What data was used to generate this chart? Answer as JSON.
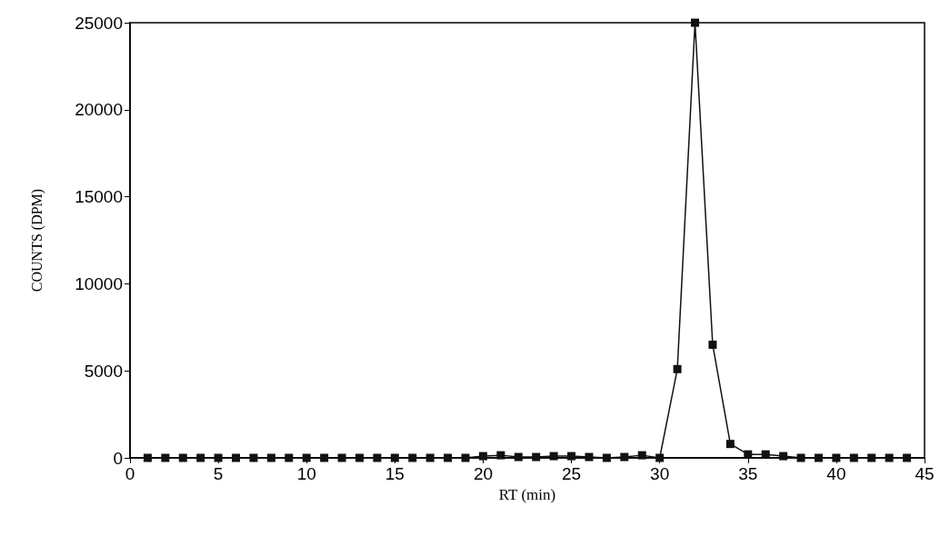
{
  "chart_data": {
    "type": "line",
    "xlabel": "RT (min)",
    "ylabel": "COUNTS (DPM)",
    "x": [
      1,
      2,
      3,
      4,
      5,
      6,
      7,
      8,
      9,
      10,
      11,
      12,
      13,
      14,
      15,
      16,
      17,
      18,
      19,
      20,
      21,
      22,
      23,
      24,
      25,
      26,
      27,
      28,
      29,
      30,
      31,
      32,
      33,
      34,
      35,
      36,
      37,
      38,
      39,
      40,
      41,
      42,
      43,
      44
    ],
    "series": [
      {
        "color": "#111111",
        "values": [
          0,
          0,
          0,
          0,
          0,
          0,
          0,
          0,
          0,
          0,
          0,
          0,
          0,
          0,
          0,
          0,
          0,
          0,
          0,
          100,
          150,
          50,
          50,
          100,
          100,
          50,
          0,
          50,
          150,
          0,
          5100,
          25000,
          6500,
          800,
          200,
          200,
          100,
          0,
          0,
          0,
          0,
          0,
          0,
          0
        ]
      }
    ],
    "xlim": [
      0,
      45
    ],
    "xticks": [
      0,
      5,
      10,
      15,
      20,
      25,
      30,
      35,
      40,
      45
    ],
    "ylim": [
      0,
      25000
    ],
    "yticks": [
      0,
      5000,
      10000,
      15000,
      20000,
      25000
    ],
    "grid": false,
    "marker": "square",
    "line_style": "solid"
  }
}
